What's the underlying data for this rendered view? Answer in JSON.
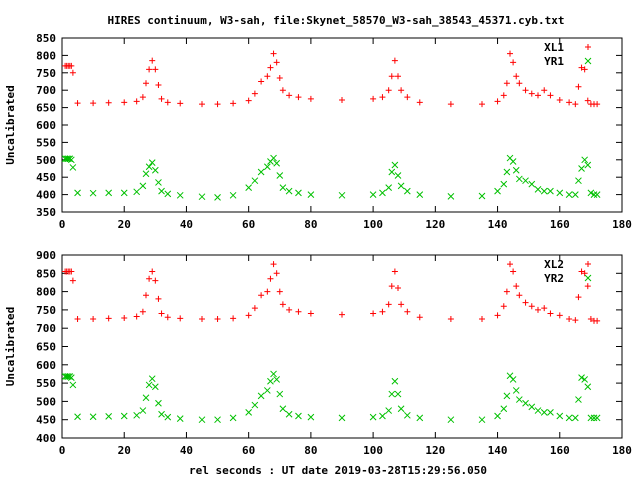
{
  "title": "HIRES continuum, W3-sah, file:Skynet_58570_W3-sah_38543_45371.cyb.txt",
  "xlabel": "rel seconds : UT date 2019-03-28T15:29:56.050",
  "colors": {
    "XL": "#ff0000",
    "YR": "#00c000"
  },
  "chart_data": [
    {
      "type": "scatter",
      "ylabel": "Uncalibrated",
      "xlim": [
        0,
        180
      ],
      "ylim": [
        350,
        850
      ],
      "xticks": [
        0,
        20,
        40,
        60,
        80,
        100,
        120,
        140,
        160,
        180
      ],
      "yticks": [
        350,
        400,
        450,
        500,
        550,
        600,
        650,
        700,
        750,
        800,
        850
      ],
      "legend_position": "top-right",
      "series": [
        {
          "name": "XL1",
          "marker": "+",
          "x": [
            1,
            1.5,
            2,
            2.5,
            3,
            3.5,
            5,
            10,
            15,
            20,
            24,
            26,
            27,
            28,
            29,
            30,
            31,
            32,
            34,
            38,
            45,
            50,
            55,
            60,
            62,
            64,
            66,
            67,
            68,
            69,
            70,
            71,
            73,
            76,
            80,
            90,
            100,
            103,
            105,
            106,
            107,
            108,
            109,
            111,
            115,
            125,
            135,
            140,
            142,
            143,
            144,
            145,
            146,
            147,
            149,
            151,
            153,
            155,
            157,
            160,
            163,
            165,
            166,
            167,
            168,
            169,
            170,
            171,
            172
          ],
          "y": [
            770,
            770,
            770,
            770,
            770,
            750,
            663,
            663,
            664,
            665,
            668,
            680,
            720,
            760,
            785,
            760,
            715,
            675,
            665,
            662,
            660,
            660,
            662,
            670,
            690,
            725,
            740,
            765,
            805,
            780,
            735,
            700,
            685,
            680,
            675,
            672,
            675,
            680,
            700,
            740,
            785,
            740,
            700,
            680,
            665,
            660,
            660,
            668,
            685,
            720,
            805,
            780,
            740,
            720,
            700,
            690,
            685,
            700,
            685,
            672,
            665,
            660,
            710,
            765,
            760,
            670,
            660,
            660,
            660
          ]
        },
        {
          "name": "YR1",
          "marker": "x",
          "x": [
            1,
            1.5,
            2,
            2.5,
            3,
            3.5,
            5,
            10,
            15,
            20,
            24,
            26,
            27,
            28,
            29,
            30,
            31,
            32,
            34,
            38,
            45,
            50,
            55,
            60,
            62,
            64,
            66,
            67,
            68,
            69,
            70,
            71,
            73,
            76,
            80,
            90,
            100,
            103,
            105,
            106,
            107,
            108,
            109,
            111,
            115,
            125,
            135,
            140,
            142,
            143,
            144,
            145,
            146,
            147,
            149,
            151,
            153,
            155,
            157,
            160,
            163,
            165,
            166,
            167,
            168,
            169,
            170,
            171,
            172
          ],
          "y": [
            503,
            503,
            503,
            503,
            500,
            478,
            405,
            404,
            405,
            405,
            408,
            425,
            460,
            480,
            492,
            470,
            435,
            410,
            402,
            398,
            394,
            392,
            398,
            420,
            440,
            465,
            480,
            495,
            505,
            490,
            455,
            420,
            410,
            405,
            400,
            398,
            400,
            405,
            420,
            465,
            485,
            455,
            425,
            410,
            400,
            395,
            396,
            410,
            430,
            465,
            505,
            495,
            470,
            445,
            440,
            430,
            415,
            410,
            410,
            405,
            400,
            400,
            440,
            475,
            500,
            485,
            405,
            400,
            400
          ]
        }
      ]
    },
    {
      "type": "scatter",
      "ylabel": "Uncalibrated",
      "xlim": [
        0,
        180
      ],
      "ylim": [
        400,
        900
      ],
      "xticks": [
        0,
        20,
        40,
        60,
        80,
        100,
        120,
        140,
        160,
        180
      ],
      "yticks": [
        400,
        450,
        500,
        550,
        600,
        650,
        700,
        750,
        800,
        850,
        900
      ],
      "legend_position": "top-right",
      "series": [
        {
          "name": "XL2",
          "marker": "+",
          "x": [
            1,
            1.5,
            2,
            2.5,
            3,
            3.5,
            5,
            10,
            15,
            20,
            24,
            26,
            27,
            28,
            29,
            30,
            31,
            32,
            34,
            38,
            45,
            50,
            55,
            60,
            62,
            64,
            66,
            67,
            68,
            69,
            70,
            71,
            73,
            76,
            80,
            90,
            100,
            103,
            105,
            106,
            107,
            108,
            109,
            111,
            115,
            125,
            135,
            140,
            142,
            143,
            144,
            145,
            146,
            147,
            149,
            151,
            153,
            155,
            157,
            160,
            163,
            165,
            166,
            167,
            168,
            169,
            170,
            171,
            172
          ],
          "y": [
            855,
            855,
            855,
            855,
            855,
            830,
            725,
            725,
            727,
            728,
            732,
            745,
            790,
            835,
            855,
            830,
            780,
            740,
            730,
            727,
            725,
            725,
            727,
            735,
            755,
            790,
            800,
            835,
            875,
            850,
            800,
            765,
            750,
            745,
            740,
            737,
            740,
            745,
            765,
            815,
            855,
            810,
            765,
            745,
            730,
            725,
            725,
            735,
            760,
            800,
            875,
            855,
            815,
            790,
            770,
            760,
            750,
            755,
            740,
            735,
            725,
            722,
            785,
            855,
            850,
            815,
            725,
            720,
            720
          ]
        },
        {
          "name": "YR2",
          "marker": "x",
          "x": [
            1,
            1.5,
            2,
            2.5,
            3,
            3.5,
            5,
            10,
            15,
            20,
            24,
            26,
            27,
            28,
            29,
            30,
            31,
            32,
            34,
            38,
            45,
            50,
            55,
            60,
            62,
            64,
            66,
            67,
            68,
            69,
            70,
            71,
            73,
            76,
            80,
            90,
            100,
            103,
            105,
            106,
            107,
            108,
            109,
            111,
            115,
            125,
            135,
            140,
            142,
            143,
            144,
            145,
            146,
            147,
            149,
            151,
            153,
            155,
            157,
            160,
            163,
            165,
            166,
            167,
            168,
            169,
            170,
            171,
            172
          ],
          "y": [
            568,
            568,
            568,
            568,
            565,
            545,
            458,
            458,
            459,
            460,
            462,
            475,
            510,
            545,
            562,
            540,
            495,
            465,
            457,
            453,
            450,
            450,
            455,
            470,
            490,
            515,
            530,
            555,
            575,
            560,
            520,
            480,
            465,
            460,
            457,
            455,
            457,
            460,
            475,
            520,
            555,
            520,
            480,
            462,
            455,
            450,
            450,
            460,
            480,
            515,
            570,
            560,
            530,
            505,
            495,
            485,
            475,
            470,
            470,
            460,
            455,
            455,
            505,
            565,
            560,
            540,
            455,
            455,
            455
          ]
        }
      ]
    }
  ]
}
